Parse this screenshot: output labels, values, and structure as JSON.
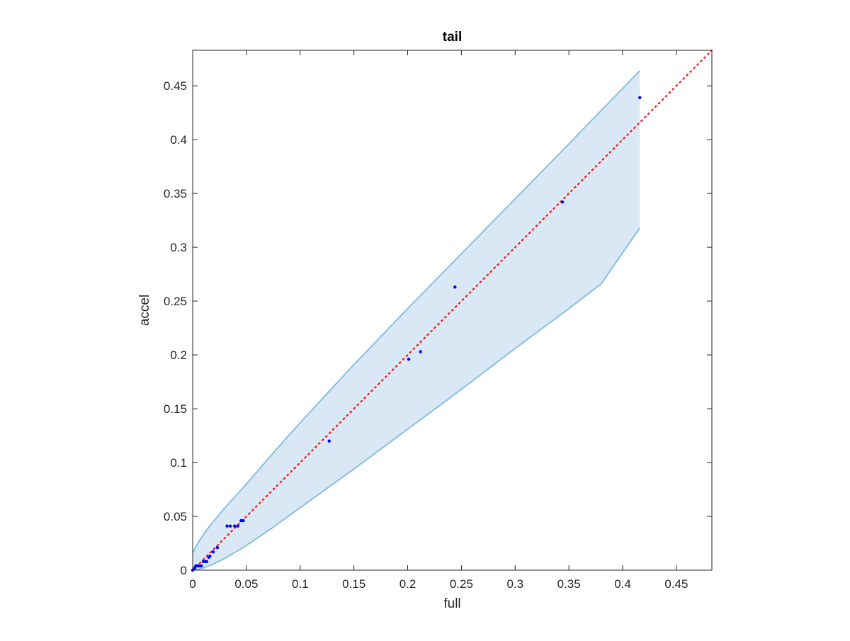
{
  "chart_data": {
    "type": "scatter",
    "title": "tail",
    "xlabel": "full",
    "ylabel": "accel",
    "xlim": [
      0,
      0.483
    ],
    "ylim": [
      0,
      0.483
    ],
    "xticks": [
      "0",
      "0.05",
      "0.1",
      "0.15",
      "0.2",
      "0.25",
      "0.3",
      "0.35",
      "0.4",
      "0.45"
    ],
    "yticks": [
      "0",
      "0.05",
      "0.1",
      "0.15",
      "0.2",
      "0.25",
      "0.3",
      "0.35",
      "0.4",
      "0.45"
    ],
    "grid": false,
    "box": true,
    "points": {
      "color": "#0000ff",
      "x": [
        0,
        0.001,
        0.002,
        0.003,
        0.004,
        0.005,
        0.006,
        0.007,
        0.008,
        0.01,
        0.012,
        0.013,
        0.015,
        0.016,
        0.019,
        0.023,
        0.032,
        0.035,
        0.039,
        0.042,
        0.045,
        0.047,
        0.127,
        0.201,
        0.212,
        0.244,
        0.344,
        0.416
      ],
      "y": [
        0,
        0.001,
        0.002,
        0.004,
        0.004,
        0.004,
        0.004,
        0.004,
        0.004,
        0.008,
        0.008,
        0.008,
        0.012,
        0.013,
        0.017,
        0.021,
        0.041,
        0.041,
        0.041,
        0.041,
        0.046,
        0.046,
        0.12,
        0.196,
        0.203,
        0.263,
        0.342,
        0.439
      ]
    },
    "reference_line": {
      "color": "#ff0000",
      "style": "dotted",
      "x": [
        0,
        0.483
      ],
      "y": [
        0,
        0.483
      ]
    },
    "confidence_band": {
      "fill": "#d9e8f4",
      "edge": "#88bfe0",
      "x": [
        0,
        0.003,
        0.006,
        0.01,
        0.015,
        0.02,
        0.03,
        0.04,
        0.05,
        0.075,
        0.1,
        0.15,
        0.2,
        0.25,
        0.3,
        0.35,
        0.38,
        0.416
      ],
      "upper": [
        0.016,
        0.022,
        0.027,
        0.033,
        0.04,
        0.046,
        0.058,
        0.069,
        0.08,
        0.109,
        0.137,
        0.191,
        0.243,
        0.294,
        0.345,
        0.396,
        0.427,
        0.464
      ],
      "lower": [
        0,
        0.0005,
        0.001,
        0.002,
        0.004,
        0.006,
        0.011,
        0.017,
        0.023,
        0.04,
        0.058,
        0.094,
        0.131,
        0.168,
        0.206,
        0.243,
        0.266,
        0.318
      ],
      "upper_clip": 0.483
    }
  }
}
